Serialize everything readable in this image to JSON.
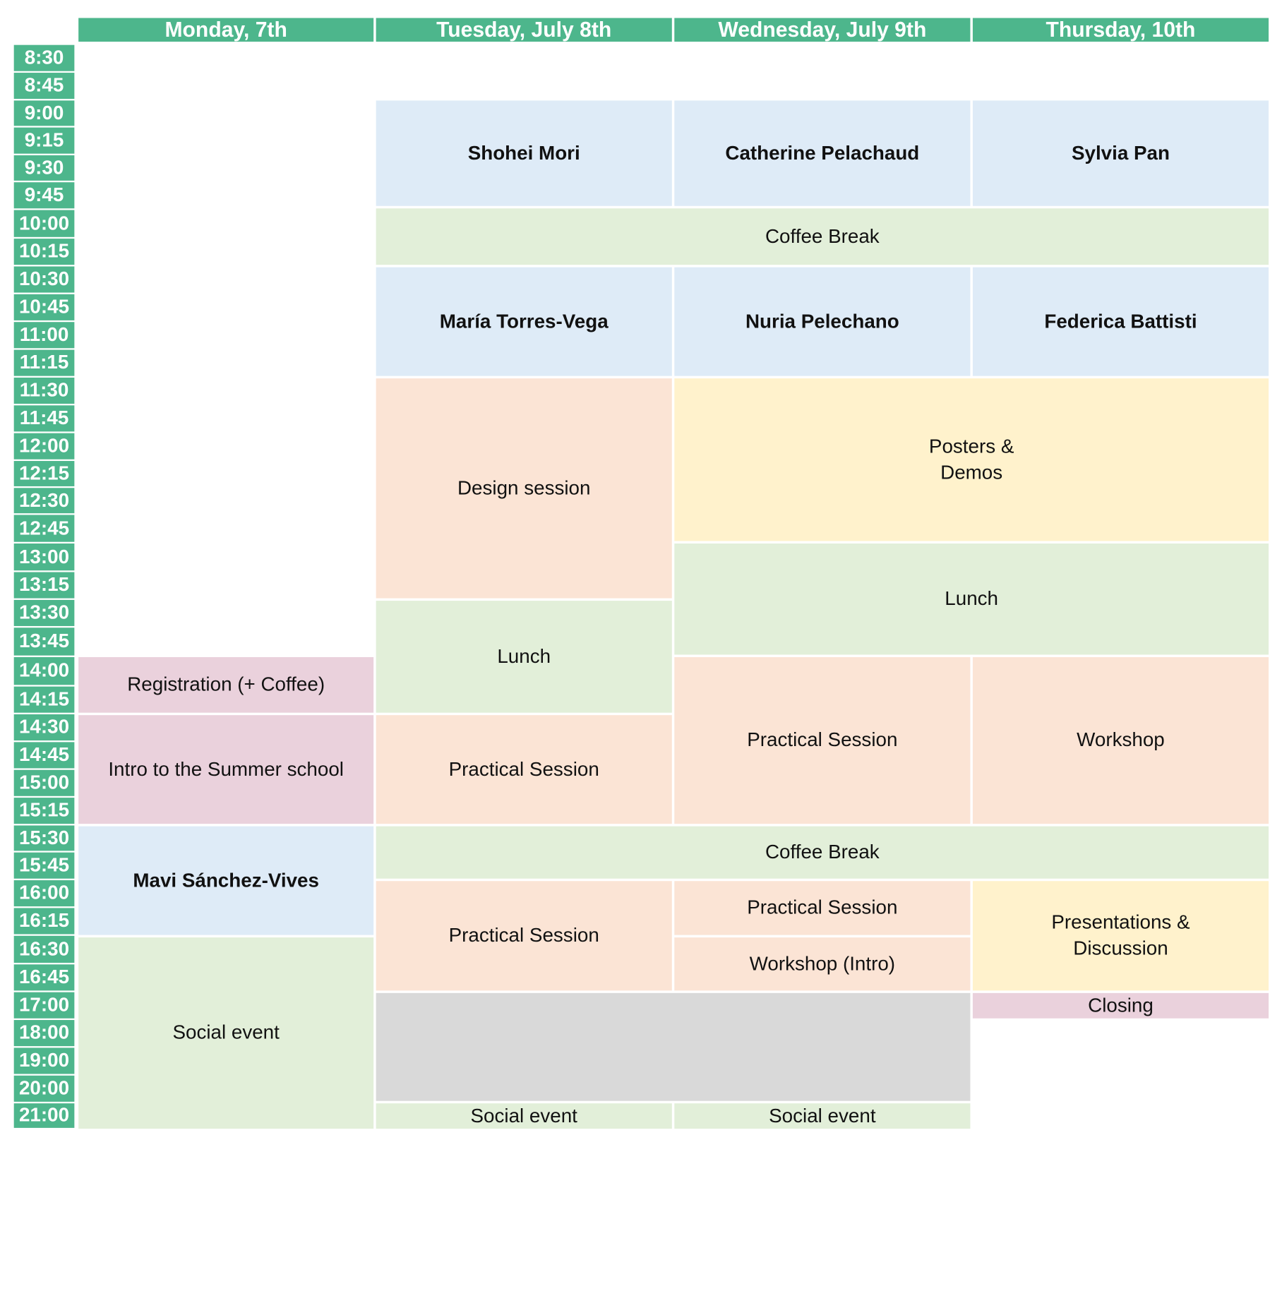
{
  "headers": [
    "Monday, 7th",
    "Tuesday, July 8th",
    "Wednesday, July 9th",
    "Thursday, 10th"
  ],
  "times": [
    "8:30",
    "8:45",
    "9:00",
    "9:15",
    "9:30",
    "9:45",
    "10:00",
    "10:15",
    "10:30",
    "10:45",
    "11:00",
    "11:15",
    "11:30",
    "11:45",
    "12:00",
    "12:15",
    "12:30",
    "12:45",
    "13:00",
    "13:15",
    "13:30",
    "13:45",
    "14:00",
    "14:15",
    "14:30",
    "14:45",
    "15:00",
    "15:15",
    "15:30",
    "15:45",
    "16:00",
    "16:15",
    "16:30",
    "16:45",
    "17:00",
    "18:00",
    "19:00",
    "20:00",
    "21:00"
  ],
  "events": {
    "mon_registration": "Registration (+ Coffee)",
    "mon_intro": "Intro to the Summer school",
    "mon_talk": "Mavi Sánchez-Vives",
    "mon_social": "Social event",
    "tue_talk1": "Shohei Mori",
    "tue_talk2": "María Torres-Vega",
    "tue_design": "Design session",
    "tue_lunch": "Lunch",
    "tue_practical1": "Practical Session",
    "tue_practical2": "Practical Session",
    "tue_social": "Social event",
    "wed_talk1": "Catherine Pelachaud",
    "wed_talk2": "Nuria Pelechano",
    "wed_practical1": "Practical Session",
    "wed_practical2": "Practical Session",
    "wed_workshop_intro": "Workshop (Intro)",
    "wed_social": "Social event",
    "thu_talk1": "Sylvia Pan",
    "thu_talk2": "Federica Battisti",
    "thu_workshop": "Workshop",
    "thu_presentations": "Presentations &\nDiscussion",
    "thu_closing": "Closing",
    "coffee_am": "Coffee Break",
    "coffee_pm": "Coffee Break",
    "posters": "Posters &\nDemos",
    "lunch_wed_thu": "Lunch"
  },
  "colors": {
    "header": "#4db68c",
    "talk": "#deebf7",
    "break": "#e2efd9",
    "session": "#fbe4d5",
    "highlight": "#fff2cc",
    "admin": "#ead1dc",
    "empty": "#d9d9d9"
  }
}
